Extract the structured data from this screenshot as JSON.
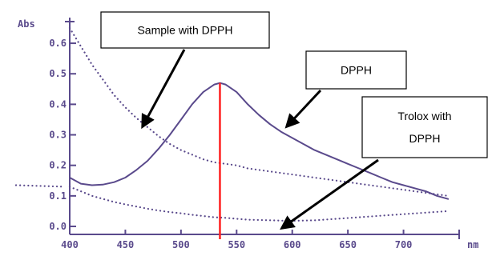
{
  "colors": {
    "axis": "#5a4a8c",
    "dpph_line": "#5a4a8c",
    "dotted": "#5a4a8c",
    "marker": "#ff2020",
    "callout_border": "#000000",
    "arrow": "#000000"
  },
  "chart_data": {
    "type": "line",
    "xlabel": "nm",
    "ylabel": "Abs",
    "xlim": [
      400,
      750
    ],
    "ylim": [
      0,
      0.65
    ],
    "x_ticks": [
      400,
      450,
      500,
      550,
      600,
      650,
      700
    ],
    "y_ticks": [
      "0.0",
      "0.1",
      "0.2",
      "0.3",
      "0.4",
      "0.5",
      "0.6"
    ],
    "y_tick_values": [
      0.0,
      0.1,
      0.2,
      0.3,
      0.4,
      0.5,
      0.6
    ],
    "marker_x": 535,
    "series": [
      {
        "name": "DPPH",
        "style": "solid",
        "x": [
          400,
          410,
          420,
          430,
          440,
          450,
          460,
          470,
          480,
          490,
          500,
          510,
          520,
          530,
          535,
          540,
          550,
          560,
          570,
          580,
          590,
          600,
          610,
          620,
          630,
          640,
          650,
          660,
          670,
          680,
          690,
          700,
          710,
          720,
          730,
          740
        ],
        "y": [
          0.16,
          0.14,
          0.135,
          0.137,
          0.145,
          0.16,
          0.185,
          0.215,
          0.255,
          0.3,
          0.35,
          0.4,
          0.44,
          0.465,
          0.47,
          0.465,
          0.44,
          0.4,
          0.365,
          0.335,
          0.31,
          0.29,
          0.27,
          0.25,
          0.235,
          0.22,
          0.205,
          0.19,
          0.175,
          0.16,
          0.145,
          0.135,
          0.125,
          0.115,
          0.1,
          0.09
        ]
      },
      {
        "name": "Sample with DPPH",
        "style": "dotted",
        "x": [
          400,
          410,
          420,
          430,
          440,
          450,
          460,
          470,
          480,
          490,
          500,
          510,
          520,
          530,
          540,
          550,
          560,
          570,
          580,
          600,
          620,
          640,
          660,
          680,
          700,
          720,
          740
        ],
        "y": [
          0.65,
          0.59,
          0.53,
          0.48,
          0.43,
          0.39,
          0.355,
          0.325,
          0.295,
          0.27,
          0.25,
          0.235,
          0.22,
          0.21,
          0.205,
          0.2,
          0.19,
          0.185,
          0.18,
          0.17,
          0.16,
          0.15,
          0.14,
          0.13,
          0.12,
          0.11,
          0.1
        ]
      },
      {
        "name": "Trolox with DPPH",
        "style": "dotted",
        "x": [
          400,
          410,
          420,
          430,
          440,
          450,
          460,
          470,
          480,
          490,
          500,
          510,
          520,
          530,
          540,
          550,
          560,
          580,
          600,
          620,
          640,
          660,
          680,
          700,
          720,
          740
        ],
        "y": [
          0.13,
          0.115,
          0.1,
          0.09,
          0.08,
          0.072,
          0.065,
          0.058,
          0.052,
          0.047,
          0.043,
          0.038,
          0.034,
          0.03,
          0.028,
          0.025,
          0.022,
          0.02,
          0.018,
          0.02,
          0.025,
          0.03,
          0.035,
          0.04,
          0.045,
          0.05
        ]
      }
    ],
    "annotations": [
      {
        "label": "Sample with DPPH"
      },
      {
        "label": "DPPH"
      },
      {
        "label": "Trolox with",
        "label2": "DPPH"
      }
    ]
  }
}
